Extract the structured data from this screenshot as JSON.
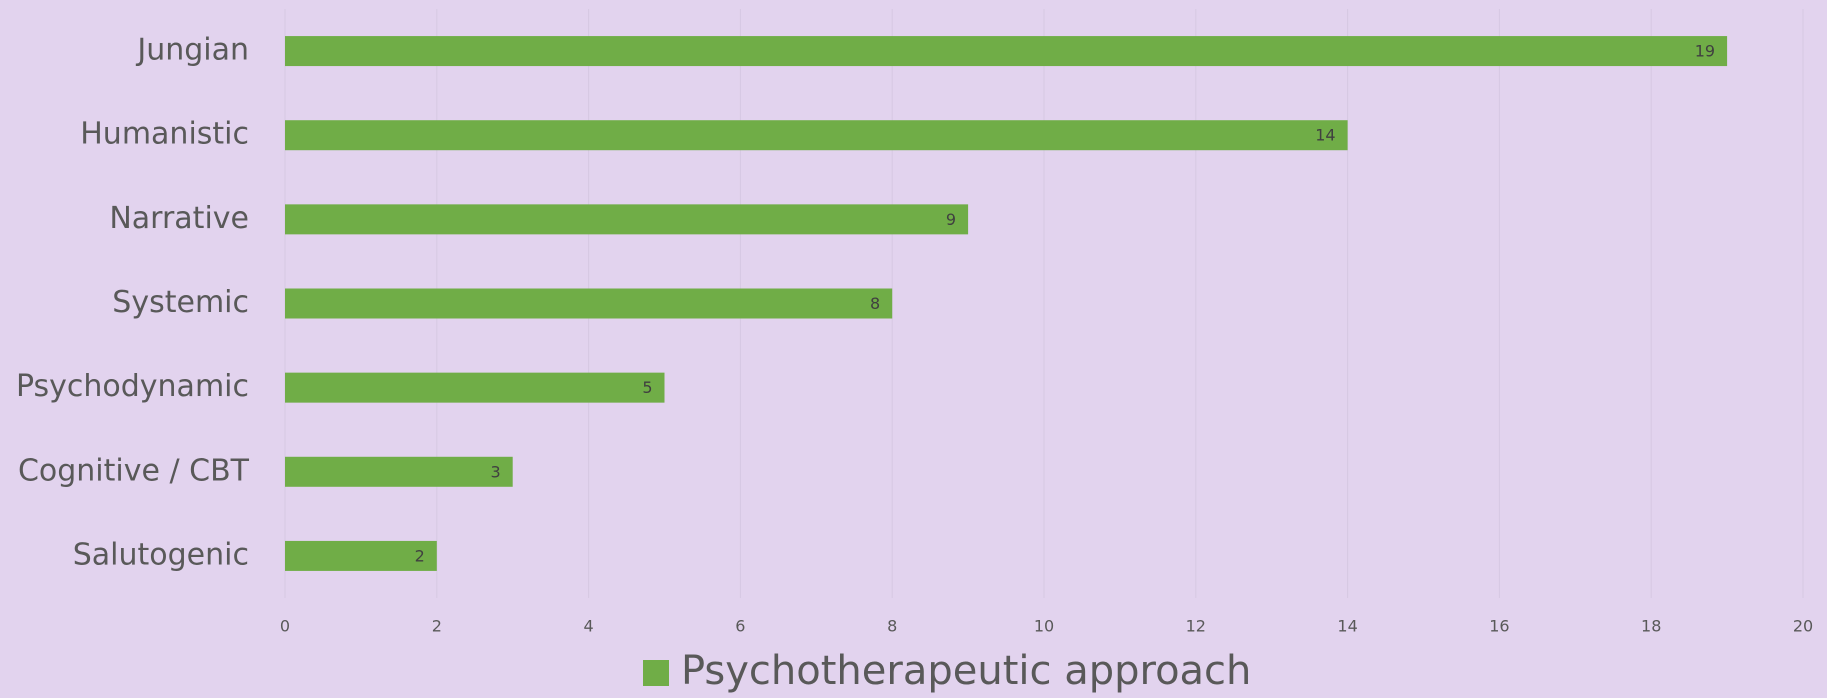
{
  "chart_data": {
    "type": "bar",
    "orientation": "horizontal",
    "categories": [
      "Jungian",
      "Humanistic",
      "Narrative",
      "Systemic",
      "Psychodynamic",
      "Cognitive / CBT",
      "Salutogenic"
    ],
    "series": [
      {
        "name": "Psychotherapeutic approach",
        "color": "#70ad47",
        "values": [
          19,
          14,
          9,
          8,
          5,
          3,
          2
        ]
      }
    ],
    "xlim": [
      0,
      20
    ],
    "xticks": [
      0,
      2,
      4,
      6,
      8,
      10,
      12,
      14,
      16,
      18,
      20
    ],
    "grid": true,
    "legend": "bottom",
    "data_labels": "inside-end"
  }
}
